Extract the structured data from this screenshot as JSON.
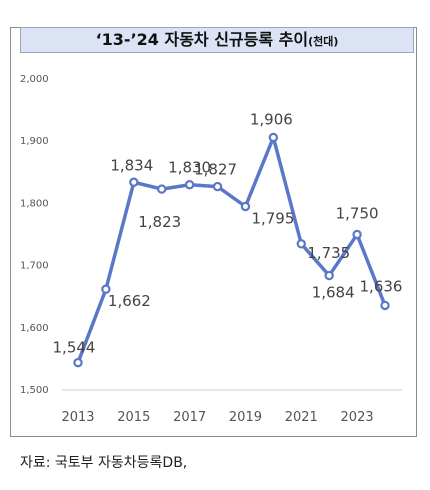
{
  "title": "‘13-’24 자동차 신규등록 추이",
  "title_unit": "(천대)",
  "source": "자료:  국토부 자동차등록DB,",
  "colors": {
    "line": "#5b77c8",
    "title_bg": "#dce3f5",
    "axis": "#cccccc"
  },
  "chart_data": {
    "type": "line",
    "title": "‘13-’24 자동차 신규등록 추이",
    "unit": "(천대)",
    "xlabel": "",
    "ylabel": "",
    "x": [
      2013,
      2014,
      2015,
      2016,
      2017,
      2018,
      2019,
      2020,
      2021,
      2022,
      2023,
      2024
    ],
    "x_tick_labels": [
      "2013",
      "2015",
      "2017",
      "2019",
      "2021",
      "2023"
    ],
    "x_tick_values": [
      2013,
      2015,
      2017,
      2019,
      2021,
      2023
    ],
    "y_tick_labels": [
      "1,500",
      "1,600",
      "1,700",
      "1,800",
      "1,900",
      "2,000"
    ],
    "y_tick_values": [
      1500,
      1600,
      1700,
      1800,
      1900,
      2000
    ],
    "ylim": [
      1500,
      2000
    ],
    "grid": false,
    "legend": "none",
    "series": [
      {
        "values": [
          1544,
          1662,
          1834,
          1823,
          1830,
          1827,
          1795,
          1906,
          1735,
          1684,
          1750,
          1636
        ],
        "labels": [
          "1,544",
          "1,662",
          "1,834",
          "1,823",
          "1,830",
          "1,827",
          "1,795",
          "1,906",
          "1,735",
          "1,684",
          "1,750",
          "1,636"
        ]
      }
    ]
  }
}
